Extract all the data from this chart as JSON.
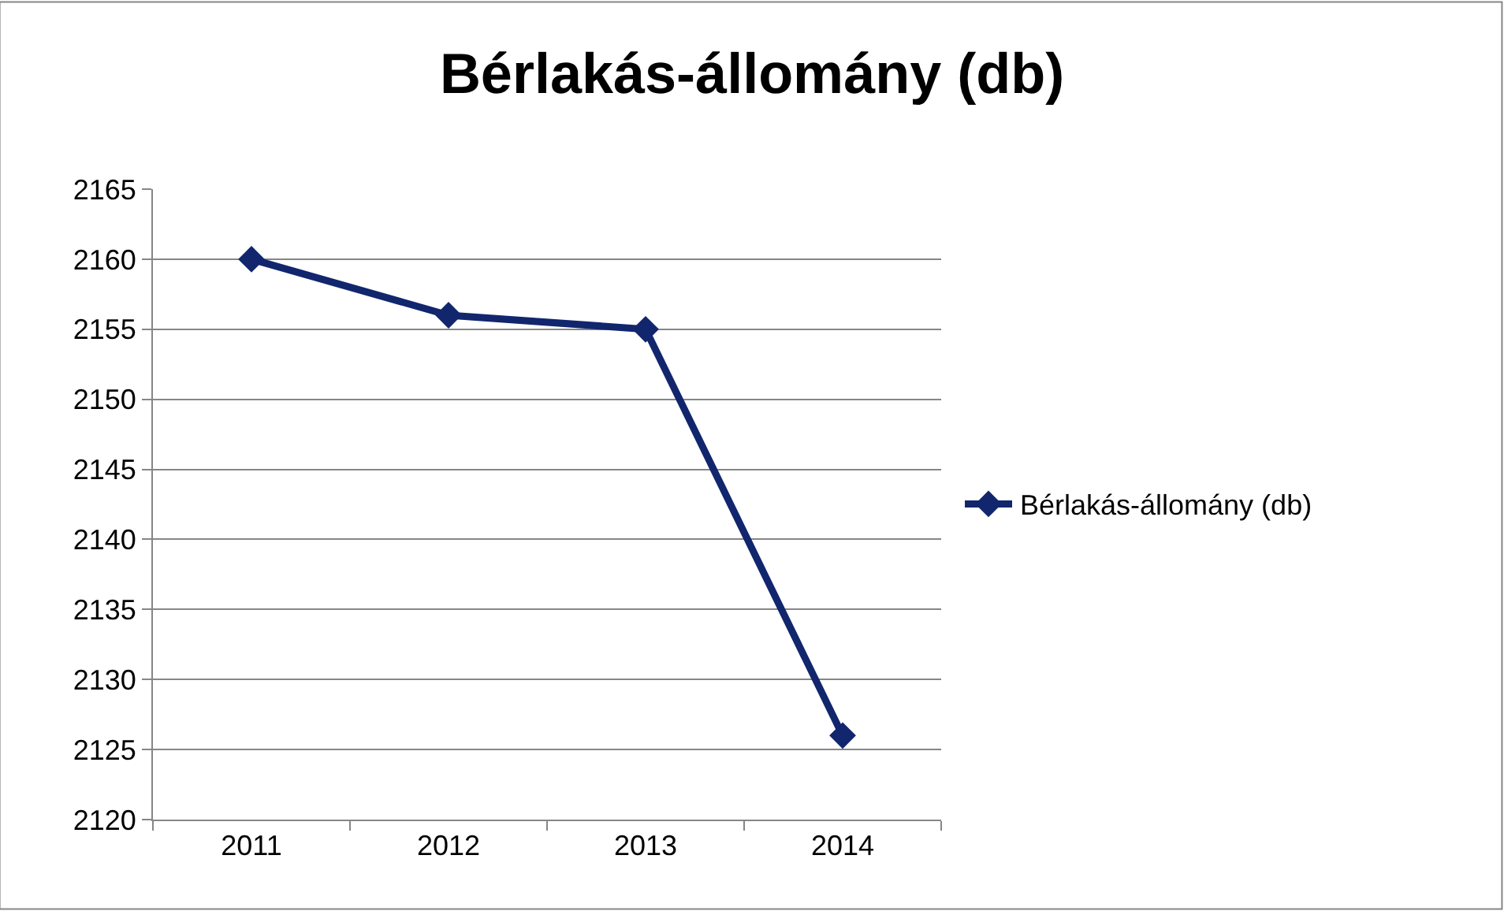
{
  "chart_data": {
    "type": "line",
    "title": "Bérlakás-állomány (db)",
    "categories": [
      "2011",
      "2012",
      "2013",
      "2014"
    ],
    "series": [
      {
        "name": "Bérlakás-állomány (db)",
        "color": "#11266d",
        "values": [
          2160,
          2156,
          2155,
          2126
        ]
      }
    ],
    "ylim": [
      2120,
      2165
    ],
    "yticks": [
      2120,
      2125,
      2130,
      2135,
      2140,
      2145,
      2150,
      2155,
      2160,
      2165
    ],
    "grid": "y",
    "legend": "right",
    "marker": "diamond",
    "line_style": "solid"
  }
}
